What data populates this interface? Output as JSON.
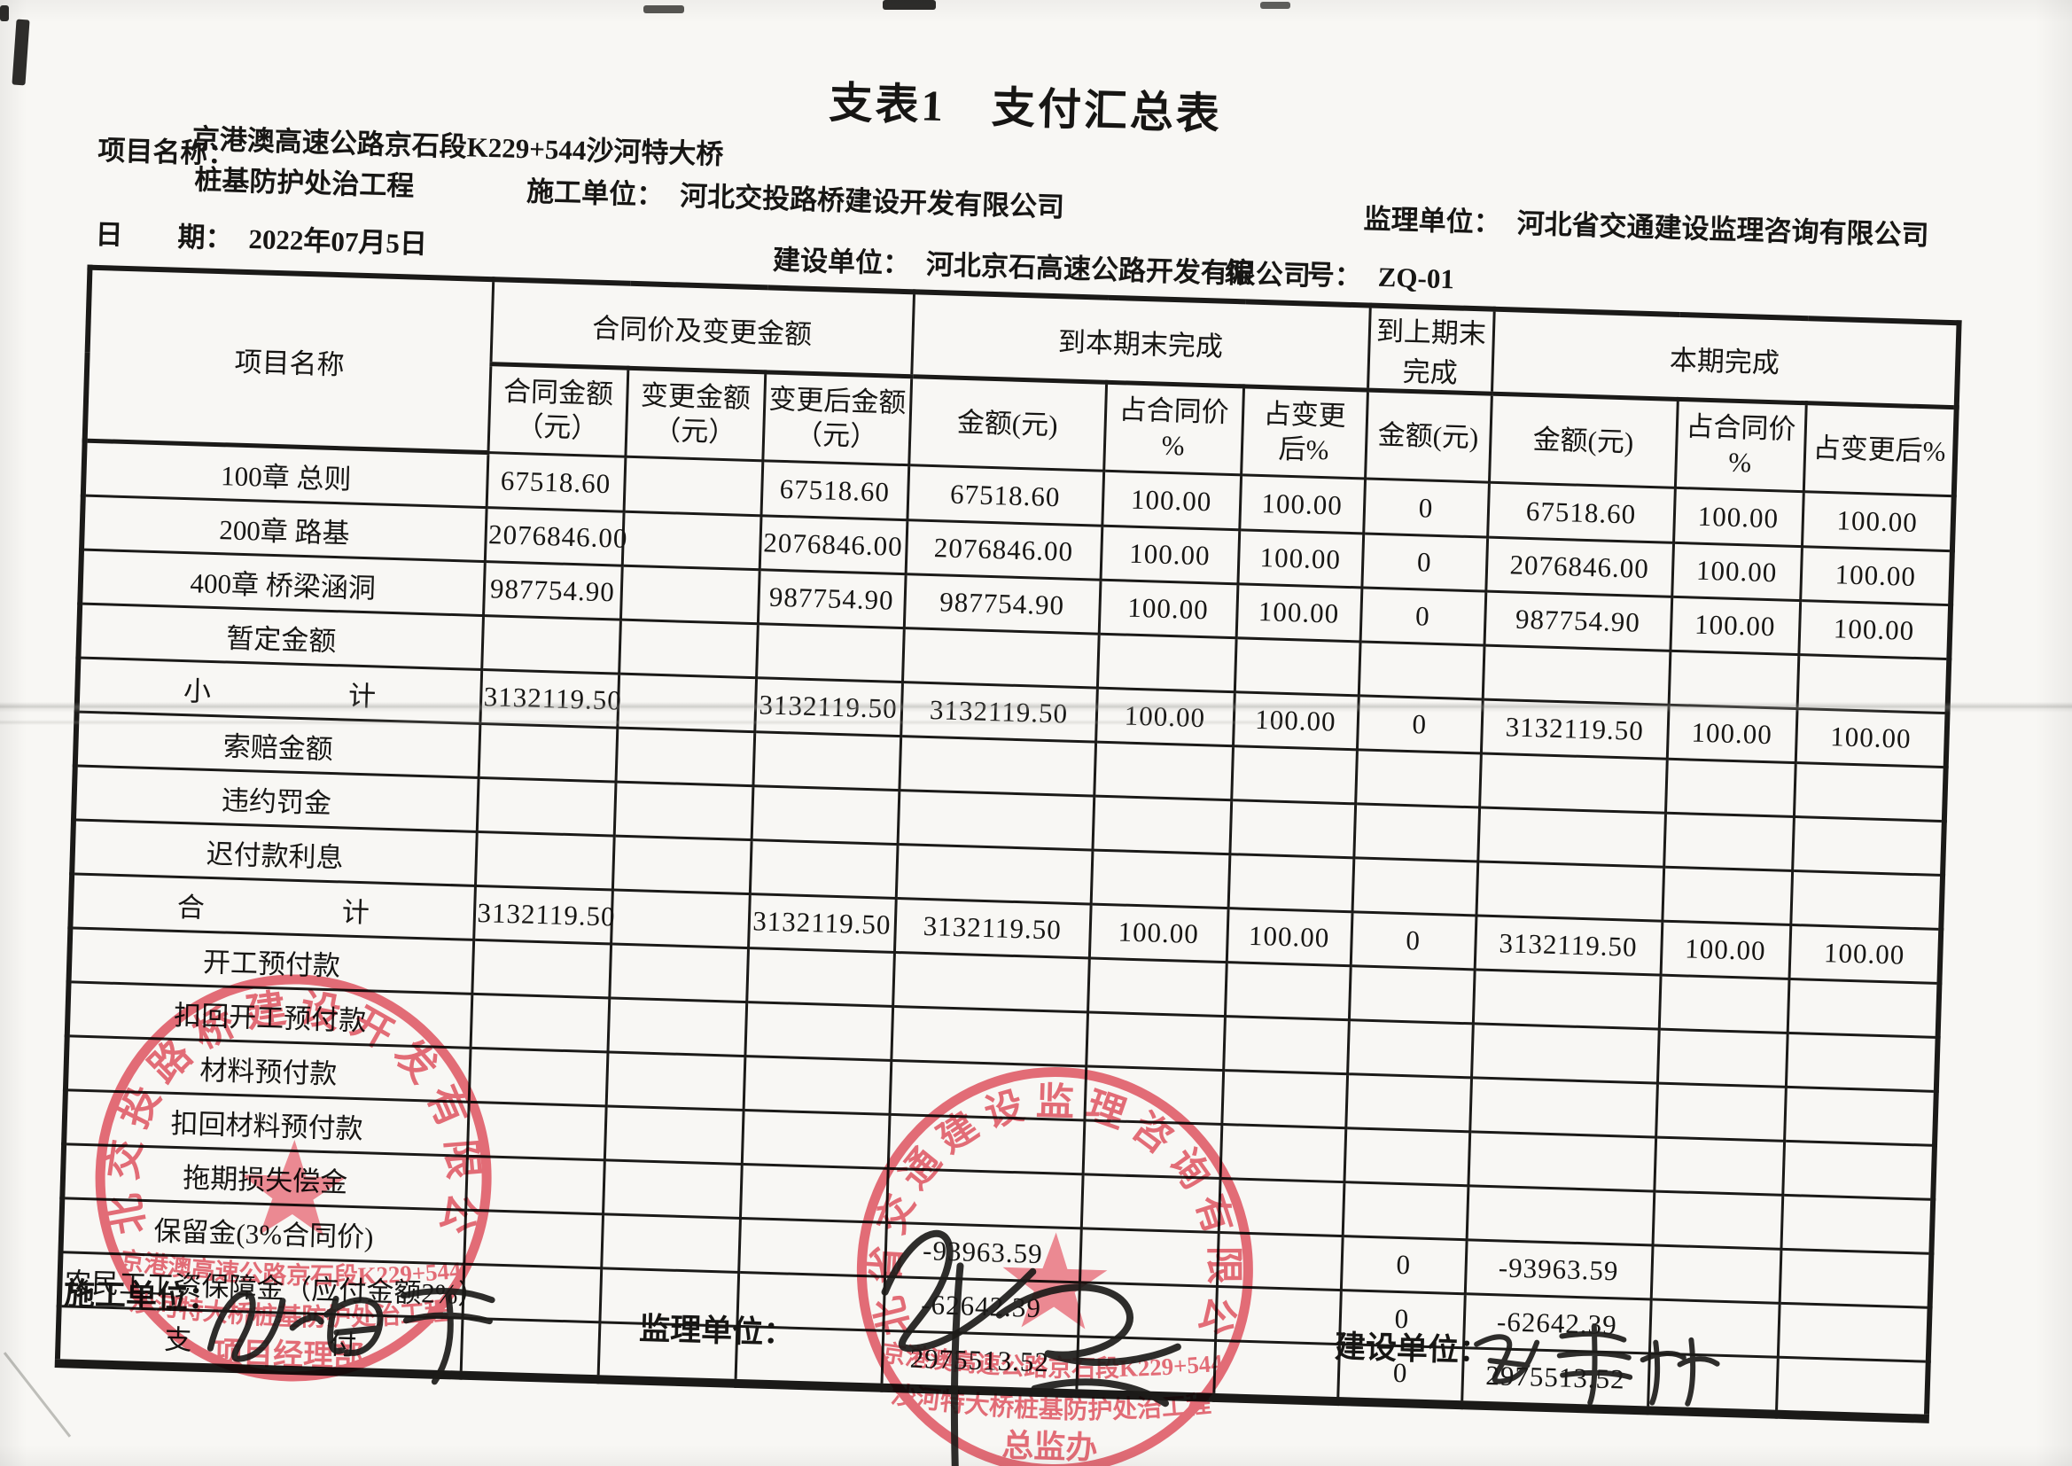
{
  "page": {
    "title": "支表1　支付汇总表"
  },
  "info": {
    "project_label": "项目名称：",
    "project_line1": "京港澳高速公路京石段K229+544沙河特大桥",
    "project_line2": "桩基防护处治工程",
    "date_label": "日　　期：",
    "date_value": "2022年07月5日",
    "contractor_label": "施工单位：",
    "contractor_value": "河北交投路桥建设开发有限公司",
    "supervisor_label": "监理单位：",
    "supervisor_value": "河北省交通建设监理咨询有限公司",
    "owner_label": "建设单位：",
    "owner_value": "河北京石高速公路开发有限公司",
    "serial_label": "编　　号：",
    "serial_value": "ZQ-01"
  },
  "table": {
    "header": {
      "col_project": "项目名称",
      "grp_contract": "合同价及变更金额",
      "grp_to_period_end": "到本期末完成",
      "grp_to_last_period": "到上期末完成",
      "grp_this_period": "本期完成",
      "sub": [
        [
          "合同金额",
          "（元）"
        ],
        [
          "变更金额",
          "（元）"
        ],
        [
          "变更后金额",
          "（元）"
        ],
        [
          "金额(元)"
        ],
        [
          "占合同价 %"
        ],
        [
          "占变更后%"
        ],
        [
          "金额(元)"
        ],
        [
          "金额(元)"
        ],
        [
          "占合同价 %"
        ],
        [
          "占变更后%"
        ]
      ]
    },
    "rows": [
      {
        "name": "100章 总则",
        "cells": [
          "67518.60",
          "",
          "67518.60",
          "67518.60",
          "100.00",
          "100.00",
          "0",
          "67518.60",
          "100.00",
          "100.00"
        ]
      },
      {
        "name": "200章 路基",
        "cells": [
          "2076846.00",
          "",
          "2076846.00",
          "2076846.00",
          "100.00",
          "100.00",
          "0",
          "2076846.00",
          "100.00",
          "100.00"
        ]
      },
      {
        "name": "400章 桥梁涵洞",
        "cells": [
          "987754.90",
          "",
          "987754.90",
          "987754.90",
          "100.00",
          "100.00",
          "0",
          "987754.90",
          "100.00",
          "100.00"
        ]
      },
      {
        "name": "暂定金额",
        "cells": [
          "",
          "",
          "",
          "",
          "",
          "",
          "",
          "",
          "",
          ""
        ]
      },
      {
        "name": "小　　　　　计",
        "cells": [
          "3132119.50",
          "",
          "3132119.50",
          "3132119.50",
          "100.00",
          "100.00",
          "0",
          "3132119.50",
          "100.00",
          "100.00"
        ]
      },
      {
        "name": "索赔金额",
        "cells": [
          "",
          "",
          "",
          "",
          "",
          "",
          "",
          "",
          "",
          ""
        ]
      },
      {
        "name": "违约罚金",
        "cells": [
          "",
          "",
          "",
          "",
          "",
          "",
          "",
          "",
          "",
          ""
        ]
      },
      {
        "name": "迟付款利息",
        "cells": [
          "",
          "",
          "",
          "",
          "",
          "",
          "",
          "",
          "",
          ""
        ]
      },
      {
        "name": "合　　　　　计",
        "cells": [
          "3132119.50",
          "",
          "3132119.50",
          "3132119.50",
          "100.00",
          "100.00",
          "0",
          "3132119.50",
          "100.00",
          "100.00"
        ]
      },
      {
        "name": "开工预付款",
        "cells": [
          "",
          "",
          "",
          "",
          "",
          "",
          "",
          "",
          "",
          ""
        ]
      },
      {
        "name": "扣回开工预付款",
        "cells": [
          "",
          "",
          "",
          "",
          "",
          "",
          "",
          "",
          "",
          ""
        ]
      },
      {
        "name": "材料预付款",
        "cells": [
          "",
          "",
          "",
          "",
          "",
          "",
          "",
          "",
          "",
          ""
        ]
      },
      {
        "name": "扣回材料预付款",
        "cells": [
          "",
          "",
          "",
          "",
          "",
          "",
          "",
          "",
          "",
          ""
        ]
      },
      {
        "name": "拖期损失偿金",
        "cells": [
          "",
          "",
          "",
          "",
          "",
          "",
          "",
          "",
          "",
          ""
        ]
      },
      {
        "name": "保留金(3%合同价)",
        "cells": [
          "",
          "",
          "",
          "-93963.59",
          "",
          "",
          "0",
          "-93963.59",
          "",
          ""
        ]
      },
      {
        "name": "农民工工资保障金（应付金额2%）",
        "cells": [
          "",
          "",
          "",
          "-62642.39",
          "",
          "",
          "0",
          "-62642.39",
          "",
          ""
        ]
      },
      {
        "name": "支　　　　　付",
        "cells": [
          "",
          "",
          "",
          "2975513.52",
          "",
          "",
          "0",
          "2975513.52",
          "",
          ""
        ]
      }
    ]
  },
  "footer": {
    "contractor_label": "施工单位：",
    "contractor_signature": "孙海军",
    "supervisor_label": "监理单位：",
    "supervisor_signature": "",
    "owner_label": "建设单位：",
    "owner_signature": "张聿林"
  },
  "stamps": {
    "color": "#dd4f5c",
    "left": {
      "ring_text": "河北交投路桥建设开发有限公司",
      "line1": "京港澳高速公路京石段K229+544",
      "line2": "沙河特大桥桩基防护处治工程",
      "line3": "项目经理部"
    },
    "right": {
      "ring_text": "河北省交通建设监理咨询有限公司",
      "line1": "京港澳高速公路京石段K229+544",
      "line2": "沙河特大桥桩基防护处治工程",
      "line3": "总监办"
    }
  }
}
